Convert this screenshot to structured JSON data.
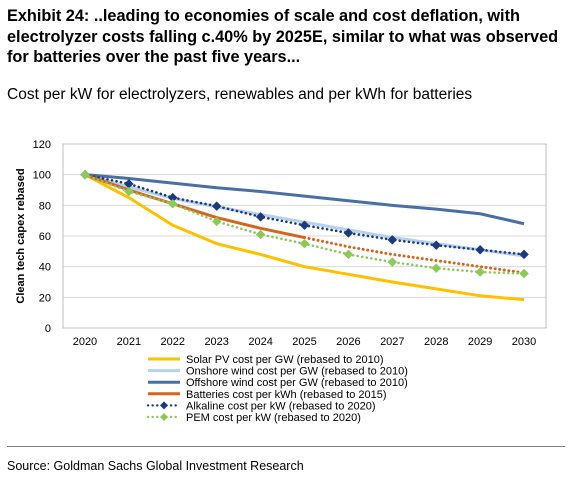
{
  "header": {
    "title": "Exhibit 24: ..leading to economies of scale and cost deflation, with electrolyzer costs falling c.40% by 2025E, similar to what was observed for batteries over the past five years...",
    "subtitle": "Cost per kW for electrolyzers, renewables and per kWh for batteries"
  },
  "footer": {
    "source": "Source: Goldman Sachs Global Investment Research"
  },
  "chart_data": {
    "type": "line",
    "title": "",
    "xlabel": "",
    "ylabel": "Clean tech capex rebased",
    "x": [
      "2020",
      "2021",
      "2022",
      "2023",
      "2024",
      "2025",
      "2026",
      "2027",
      "2028",
      "2029",
      "2030"
    ],
    "ylim": [
      0,
      120
    ],
    "yticks": [
      0,
      20,
      40,
      60,
      80,
      100,
      120
    ],
    "grid": true,
    "legend_position": "bottom",
    "series": [
      {
        "name": "Solar PV cost per GW (rebased to 2010)",
        "color": "#FFC000",
        "style": "solid",
        "values": [
          100,
          85,
          67,
          55,
          48,
          40,
          35,
          30,
          25.5,
          21,
          18.5
        ]
      },
      {
        "name": "Onshore wind cost per GW (rebased to 2010)",
        "color": "#B4D2EE",
        "style": "solid",
        "values": [
          100,
          92,
          84.5,
          79,
          74,
          69,
          64,
          59,
          55,
          51,
          47
        ]
      },
      {
        "name": "Offshore wind cost per GW (rebased to 2010)",
        "color": "#4A6FA5",
        "style": "solid",
        "values": [
          100,
          97.5,
          94.5,
          91.5,
          89,
          86,
          83,
          80,
          77.5,
          74.5,
          68
        ]
      },
      {
        "name": "Batteries cost per kWh (rebased to 2015)",
        "color": "#D4661F",
        "style": "solid",
        "values": [
          100,
          90,
          81,
          72,
          65,
          59,
          null,
          null,
          null,
          null,
          null
        ]
      },
      {
        "name": "",
        "color": "#D4661F",
        "style": "dotted",
        "values": [
          null,
          null,
          null,
          null,
          null,
          59,
          53,
          48,
          44,
          40,
          36
        ]
      },
      {
        "name": "Alkaline cost per kW (rebased to 2020)",
        "color": "#1F3A7A",
        "style": "dotted",
        "marker": "diamond",
        "values": [
          100,
          94,
          85,
          79.5,
          72.5,
          67,
          62,
          57.5,
          54,
          51,
          48
        ]
      },
      {
        "name": "PEM cost per kW (rebased to 2020)",
        "color": "#8FC85A",
        "style": "dotted",
        "marker": "diamond",
        "values": [
          100,
          89,
          81,
          69.5,
          61,
          55,
          48,
          43,
          39,
          36.5,
          35.5
        ]
      }
    ]
  }
}
